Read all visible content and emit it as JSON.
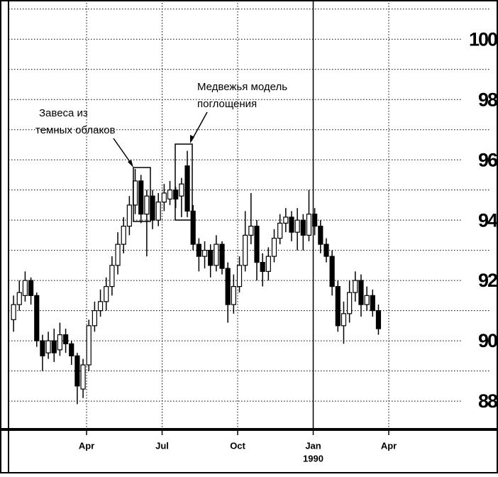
{
  "chart_data": {
    "type": "candlestick",
    "x": [
      0.1,
      0.33,
      0.56,
      0.79,
      1.02,
      1.25,
      1.48,
      1.71,
      1.94,
      2.17,
      2.4,
      2.63,
      2.86,
      3.09,
      3.32,
      3.55,
      3.78,
      4.01,
      4.24,
      4.47,
      4.7,
      4.93,
      5.16,
      5.39,
      5.62,
      5.85,
      6.08,
      6.31,
      6.54,
      6.77,
      7.0,
      7.23,
      7.46,
      7.69,
      7.92,
      8.15,
      8.38,
      8.61,
      8.84,
      9.07,
      9.3,
      9.53,
      9.76,
      9.99,
      10.22,
      10.45,
      10.68,
      10.91,
      11.14,
      11.37,
      11.6,
      11.83,
      12.06,
      12.29,
      12.52,
      12.75,
      12.98,
      13.21,
      13.44,
      13.67,
      13.9,
      14.13,
      14.36,
      14.59
    ],
    "open": [
      90.7,
      91.2,
      91.5,
      92.0,
      91.5,
      90.0,
      89.6,
      90.0,
      89.7,
      90.2,
      89.9,
      89.5,
      88.4,
      89.2,
      90.5,
      91.0,
      91.3,
      91.8,
      92.5,
      93.2,
      93.8,
      94.5,
      95.3,
      94.2,
      94.8,
      94.0,
      94.6,
      94.7,
      95.0,
      94.8,
      95.8,
      94.3,
      93.2,
      92.8,
      93.0,
      92.5,
      93.2,
      92.4,
      91.2,
      91.8,
      92.5,
      93.5,
      93.8,
      92.6,
      92.3,
      92.8,
      93.4,
      93.9,
      94.1,
      93.6,
      94.0,
      93.5,
      94.2,
      93.8,
      93.2,
      92.8,
      91.8,
      90.5,
      90.9,
      91.6,
      92.0,
      91.2,
      91.5,
      91.0
    ],
    "high": [
      91.5,
      92.0,
      92.3,
      92.1,
      91.6,
      90.2,
      90.3,
      90.4,
      90.6,
      90.4,
      90.0,
      89.6,
      89.4,
      90.7,
      91.3,
      91.7,
      92.1,
      92.8,
      93.6,
      94.1,
      94.8,
      95.7,
      95.5,
      95.0,
      95.0,
      94.9,
      95.2,
      95.3,
      95.1,
      95.4,
      96.3,
      94.5,
      93.4,
      93.3,
      93.2,
      93.5,
      93.3,
      92.6,
      92.2,
      92.8,
      94.3,
      94.9,
      94.0,
      92.9,
      93.1,
      93.7,
      94.2,
      94.4,
      94.3,
      94.4,
      94.2,
      95.0,
      94.4,
      94.0,
      93.4,
      93.0,
      92.0,
      91.3,
      92.0,
      92.3,
      92.2,
      91.8,
      91.7,
      91.2
    ],
    "low": [
      90.3,
      91.0,
      91.3,
      91.2,
      89.8,
      89.0,
      89.4,
      89.3,
      89.5,
      89.6,
      89.2,
      87.9,
      88.1,
      89.0,
      90.3,
      90.8,
      91.0,
      91.5,
      92.2,
      92.9,
      93.5,
      94.2,
      93.9,
      92.8,
      93.7,
      93.8,
      94.3,
      94.5,
      94.4,
      94.1,
      94.1,
      93.0,
      92.3,
      92.4,
      92.1,
      92.3,
      92.2,
      90.6,
      90.9,
      91.6,
      92.3,
      93.2,
      92.0,
      91.8,
      92.0,
      92.6,
      93.2,
      93.6,
      93.3,
      93.0,
      93.0,
      93.3,
      93.5,
      92.9,
      92.6,
      91.5,
      90.3,
      89.9,
      90.6,
      91.3,
      90.8,
      91.0,
      90.8,
      90.2
    ],
    "close": [
      91.2,
      91.6,
      92.0,
      91.5,
      90.0,
      89.5,
      90.0,
      89.6,
      90.2,
      89.9,
      89.5,
      88.5,
      89.2,
      90.5,
      91.0,
      91.3,
      91.8,
      92.5,
      93.2,
      93.8,
      94.5,
      95.3,
      94.2,
      94.8,
      94.0,
      94.6,
      94.9,
      95.0,
      94.7,
      95.2,
      94.3,
      93.2,
      92.8,
      93.0,
      92.5,
      93.2,
      92.4,
      91.2,
      91.8,
      92.5,
      93.5,
      93.8,
      92.6,
      92.3,
      92.8,
      93.4,
      93.9,
      94.1,
      93.6,
      94.0,
      93.5,
      94.2,
      93.8,
      93.2,
      92.8,
      91.8,
      90.5,
      90.9,
      91.6,
      92.0,
      91.2,
      91.5,
      91.0,
      90.4
    ],
    "xlim": [
      -0.1,
      19.0
    ],
    "xticks": [
      {
        "value": 3,
        "label": "Apr"
      },
      {
        "value": 6,
        "label": "Jul"
      },
      {
        "value": 9,
        "label": "Oct"
      },
      {
        "value": 12,
        "label": "Jan"
      },
      {
        "value": 15,
        "label": "Apr"
      }
    ],
    "year_label": "1990",
    "ylim": [
      87.06,
      101.3
    ],
    "yticks": [
      88,
      90,
      92,
      94,
      96,
      98,
      100
    ],
    "minor_yticks": [
      89,
      91,
      93,
      95,
      97,
      99,
      101
    ],
    "grid": true,
    "up_color": "#ffffff",
    "down_color": "#000000",
    "annotations": [
      {
        "lines": [
          "Завеса из",
          "темных облаков"
        ]
      },
      {
        "lines": [
          "Медвежья модель",
          "поглощения"
        ]
      }
    ]
  }
}
